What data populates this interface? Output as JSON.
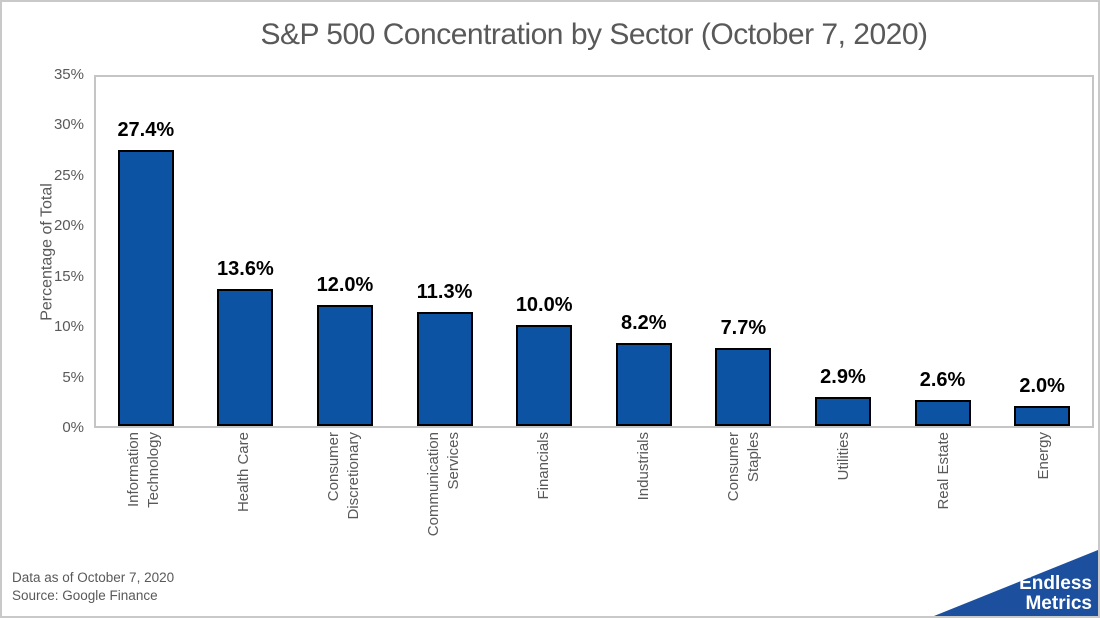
{
  "title": "S&P 500 Concentration by Sector (October 7, 2020)",
  "chart_data": {
    "type": "bar",
    "title": "S&P 500 Concentration by Sector (October 7, 2020)",
    "xlabel": "",
    "ylabel": "Percentage of Total",
    "ylim": [
      0,
      35
    ],
    "ytick_step": 5,
    "yticks": [
      "0%",
      "5%",
      "10%",
      "15%",
      "20%",
      "25%",
      "30%",
      "35%"
    ],
    "grid": false,
    "legend": false,
    "categories": [
      "Information Technology",
      "Health Care",
      "Consumer Discretionary",
      "Communication Services",
      "Financials",
      "Industrials",
      "Consumer Staples",
      "Utilities",
      "Real Estate",
      "Energy"
    ],
    "category_lines": [
      [
        "Information",
        "Technology"
      ],
      [
        "Health Care"
      ],
      [
        "Consumer",
        "Discretionary"
      ],
      [
        "Communication",
        "Services"
      ],
      [
        "Financials"
      ],
      [
        "Industrials"
      ],
      [
        "Consumer",
        "Staples"
      ],
      [
        "Utilities"
      ],
      [
        "Real Estate"
      ],
      [
        "Energy"
      ]
    ],
    "values": [
      27.4,
      13.6,
      12.0,
      11.3,
      10.0,
      8.2,
      7.7,
      2.9,
      2.6,
      2.0
    ],
    "value_labels": [
      "27.4%",
      "13.6%",
      "12.0%",
      "11.3%",
      "10.0%",
      "8.2%",
      "7.7%",
      "2.9%",
      "2.6%",
      "2.0%"
    ],
    "colors": {
      "bar": "#0d53a3",
      "bar_border": "#000000",
      "axis_text": "#595959",
      "title_text": "#595959",
      "plot_border": "#c5c5c5"
    }
  },
  "footer": {
    "line1": "Data as of October 7, 2020",
    "line2": "Source: Google Finance"
  },
  "logo": {
    "line1": "Endless",
    "line2": "Metrics",
    "background": "#1d4f9f",
    "text_color": "#ffffff"
  }
}
